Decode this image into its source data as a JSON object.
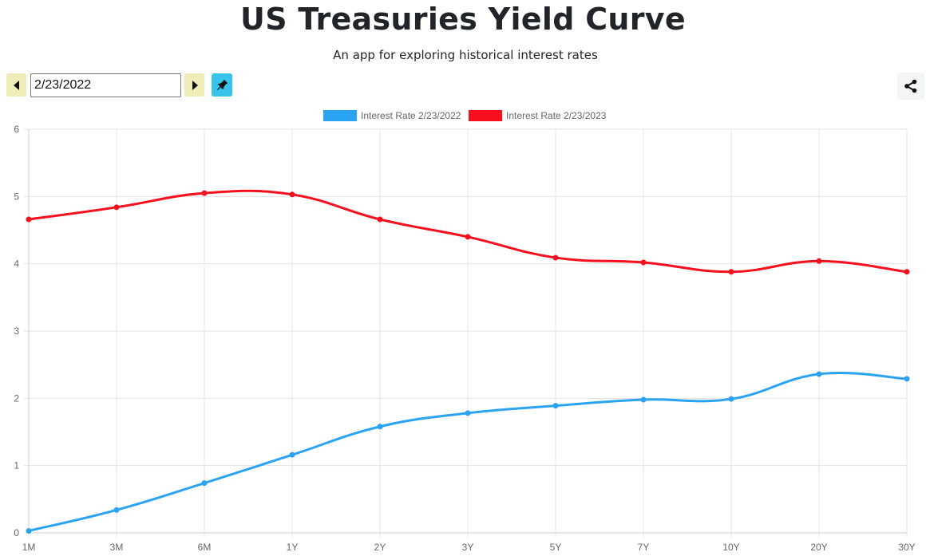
{
  "header": {
    "title": "US Treasuries Yield Curve",
    "subtitle": "An app for exploring historical interest rates"
  },
  "controls": {
    "date_value": "2/23/2022",
    "prev_icon": "triangle-left",
    "next_icon": "triangle-right",
    "pin_icon": "pushpin",
    "share_icon": "share-nodes",
    "pin_color": "#37c3ea",
    "nav_color": "#efecb8"
  },
  "chart_data": {
    "type": "line",
    "categories": [
      "1M",
      "3M",
      "6M",
      "1Y",
      "2Y",
      "3Y",
      "5Y",
      "7Y",
      "10Y",
      "20Y",
      "30Y"
    ],
    "ylim": [
      0,
      6
    ],
    "yticks": [
      "0",
      "1",
      "2",
      "3",
      "4",
      "5",
      "6"
    ],
    "grid": true,
    "legend_position": "top-center",
    "series": [
      {
        "name": "Interest Rate 2/23/2022",
        "color": "#2ba3f3",
        "values": [
          0.03,
          0.34,
          0.74,
          1.16,
          1.58,
          1.78,
          1.89,
          1.98,
          1.99,
          2.36,
          2.29
        ]
      },
      {
        "name": "Interest Rate 2/23/2023",
        "color": "#f70f1d",
        "values": [
          4.66,
          4.84,
          5.05,
          5.03,
          4.66,
          4.4,
          4.09,
          4.02,
          3.88,
          4.04,
          3.88
        ]
      }
    ]
  }
}
